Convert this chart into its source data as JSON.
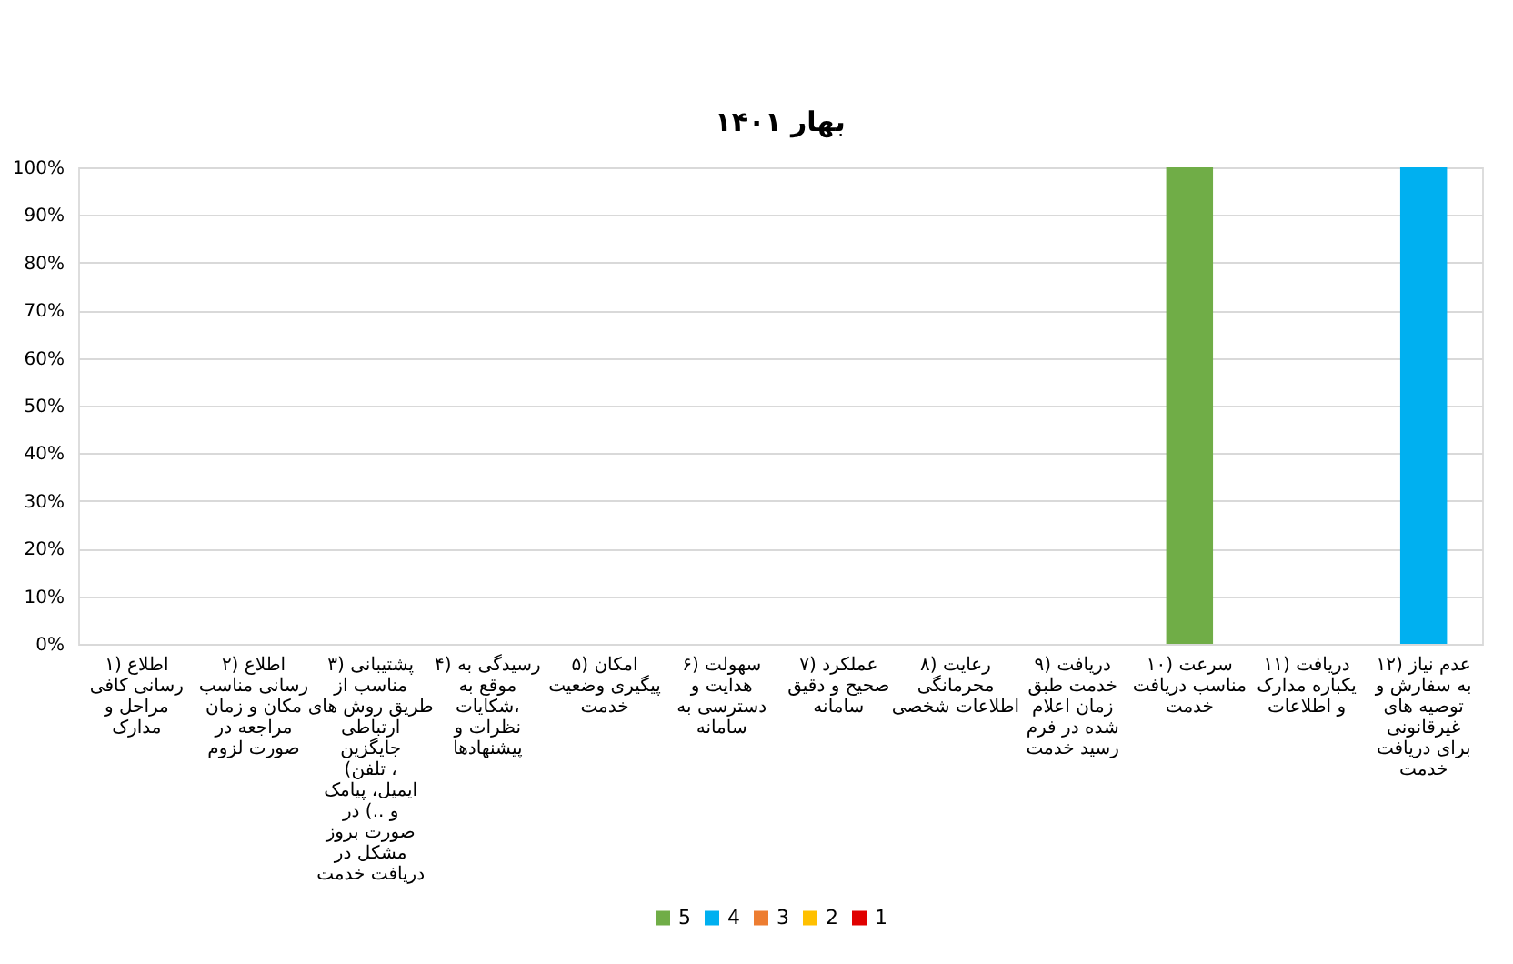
{
  "chart_data": {
    "type": "bar",
    "stacked": true,
    "title": "بهار ۱۴۰۱",
    "categories": [
      "۱) اطلاع رسانی کافی مراحل و مدارک",
      "۲) اطلاع رسانی مناسب مکان و زمان مراجعه در صورت لزوم",
      "۳) پشتیبانی مناسب از طریق روش های ارتباطی جایگزین (تلفن ، ایمیل، پیامک و ..) در صورت بروز مشکل در دریافت خدمت",
      "۴) رسیدگی به موقع به شکایات، نظرات و پیشنهادها",
      "۵) امکان پیگیری وضعیت خدمت",
      "۶) سهولت هدایت و دسترسی به سامانه",
      "۷) عملکرد صحیح و دقیق سامانه",
      "۸) رعایت محرمانگی اطلاعات شخصی",
      "۹) دریافت خدمت طبق زمان اعلام شده در فرم رسید خدمت",
      "۱۰) سرعت مناسب دریافت خدمت",
      "۱۱) دریافت یکباره مدارک و اطلاعات",
      "۱۲) عدم نیاز به سفارش و توصیه های غیرقانونی برای دریافت خدمت"
    ],
    "series": [
      {
        "name": "1",
        "color": "#e00000",
        "values": [
          null,
          null,
          null,
          null,
          null,
          null,
          null,
          null,
          null,
          null,
          null,
          null
        ]
      },
      {
        "name": "2",
        "color": "#ffc000",
        "values": [
          null,
          null,
          null,
          null,
          null,
          null,
          null,
          null,
          null,
          null,
          null,
          null
        ]
      },
      {
        "name": "3",
        "color": "#ed7d31",
        "values": [
          null,
          null,
          null,
          null,
          null,
          null,
          null,
          null,
          null,
          null,
          null,
          null
        ]
      },
      {
        "name": "4",
        "color": "#00b0f0",
        "values": [
          null,
          null,
          null,
          null,
          null,
          null,
          null,
          null,
          null,
          null,
          null,
          100
        ]
      },
      {
        "name": "5",
        "color": "#70ad47",
        "values": [
          null,
          null,
          null,
          null,
          null,
          null,
          null,
          null,
          null,
          100,
          null,
          null
        ]
      }
    ],
    "ylim": [
      0,
      100
    ],
    "yticks": [
      {
        "value": 0,
        "label": "0%"
      },
      {
        "value": 10,
        "label": "10%"
      },
      {
        "value": 20,
        "label": "20%"
      },
      {
        "value": 30,
        "label": "30%"
      },
      {
        "value": 40,
        "label": "40%"
      },
      {
        "value": 50,
        "label": "50%"
      },
      {
        "value": 60,
        "label": "60%"
      },
      {
        "value": 70,
        "label": "70%"
      },
      {
        "value": 80,
        "label": "80%"
      },
      {
        "value": 90,
        "label": "90%"
      },
      {
        "value": 100,
        "label": "100%"
      }
    ],
    "grid": "y",
    "legend": "bottom"
  }
}
